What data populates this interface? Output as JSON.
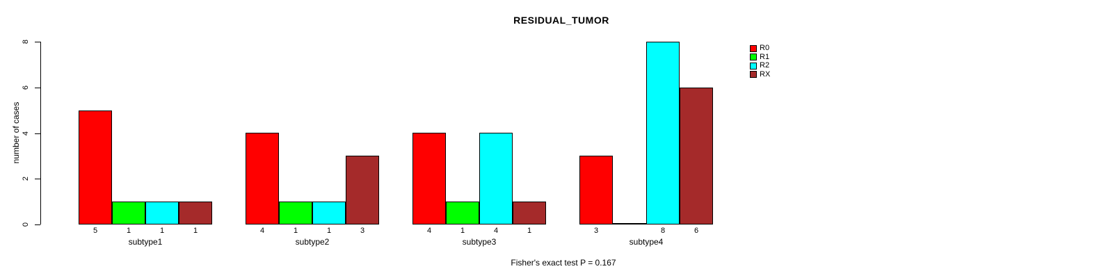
{
  "chart_data": {
    "type": "bar",
    "title": "RESIDUAL_TUMOR",
    "ylabel": "number of cases",
    "xlabel": "",
    "footer": "Fisher's exact test P = 0.167",
    "categories": [
      "subtype1",
      "subtype2",
      "subtype3",
      "subtype4"
    ],
    "series": [
      {
        "name": "R0",
        "color": "#ff0000",
        "values": [
          5,
          4,
          4,
          3
        ]
      },
      {
        "name": "R1",
        "color": "#00ff00",
        "values": [
          1,
          1,
          1,
          0
        ]
      },
      {
        "name": "R2",
        "color": "#00ffff",
        "values": [
          1,
          1,
          4,
          8
        ]
      },
      {
        "name": "RX",
        "color": "#a52a2a",
        "values": [
          1,
          3,
          1,
          6
        ]
      }
    ],
    "bar_value_labels": [
      [
        "5",
        "1",
        "1",
        "1"
      ],
      [
        "4",
        "1",
        "1",
        "3"
      ],
      [
        "4",
        "1",
        "4",
        "1"
      ],
      [
        "3",
        "",
        "8",
        "6"
      ]
    ],
    "ylim": [
      0,
      8
    ],
    "yticks": [
      0,
      2,
      4,
      6,
      8
    ],
    "legend_position": "top-right",
    "grid": false
  },
  "colors": {
    "background": "#ffffff",
    "axis": "#000000",
    "text": "#000000"
  }
}
